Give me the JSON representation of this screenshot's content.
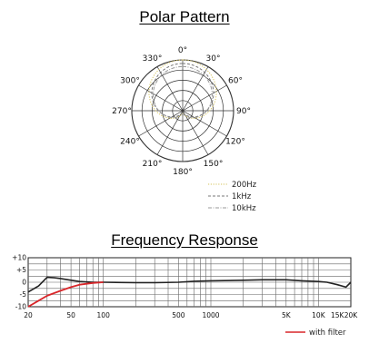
{
  "chart_data": [
    {
      "type": "polar",
      "title": "Polar Pattern",
      "angle_labels": [
        "0°",
        "30°",
        "60°",
        "90°",
        "120°",
        "150°",
        "180°",
        "210°",
        "240°",
        "270°",
        "300°",
        "330°"
      ],
      "series": [
        {
          "name": "200Hz",
          "color": "#d4c25a",
          "dash": "dotted",
          "pattern": "cardioid",
          "rear_level": 0.06
        },
        {
          "name": "1kHz",
          "color": "#777777",
          "dash": "dashed",
          "pattern": "cardioid",
          "rear_level": 0.02
        },
        {
          "name": "10kHz",
          "color": "#999999",
          "dash": "dash-dot",
          "pattern": "cardioid",
          "rear_level": 0.08
        }
      ],
      "grid": true,
      "legend": "bottom-right"
    },
    {
      "type": "line",
      "title": "Frequency Response",
      "x_scale": "log",
      "xlim": [
        20,
        20000
      ],
      "ylim": [
        -10,
        10
      ],
      "x_tick_labels": [
        {
          "v": 20,
          "t": "20"
        },
        {
          "v": 50,
          "t": "50"
        },
        {
          "v": 100,
          "t": "100"
        },
        {
          "v": 500,
          "t": "500"
        },
        {
          "v": 1000,
          "t": "1000"
        },
        {
          "v": 5000,
          "t": "5K"
        },
        {
          "v": 10000,
          "t": "10K"
        },
        {
          "v": 15000,
          "t": "15K"
        },
        {
          "v": 20000,
          "t": "20K"
        }
      ],
      "y_tick_labels": [
        {
          "v": 10,
          "t": "+10"
        },
        {
          "v": 5,
          "t": "+5"
        },
        {
          "v": 0,
          "t": "0"
        },
        {
          "v": -5,
          "t": "-5"
        },
        {
          "v": -10,
          "t": "-10"
        }
      ],
      "series": [
        {
          "name": "",
          "color": "#222222",
          "x": [
            20,
            25,
            30,
            35,
            40,
            50,
            60,
            80,
            100,
            200,
            300,
            500,
            700,
            1000,
            2000,
            3000,
            5000,
            7000,
            10000,
            12000,
            15000,
            18000,
            20000
          ],
          "y": [
            -4,
            -1.5,
            2,
            1.8,
            1.5,
            0.8,
            0.3,
            0,
            0,
            -0.2,
            -0.2,
            0,
            0.4,
            0.6,
            0.8,
            1,
            1,
            0.6,
            0.3,
            0,
            -1,
            -2,
            0
          ]
        },
        {
          "name": "with filter",
          "color": "#d9262a",
          "x": [
            20,
            25,
            30,
            40,
            50,
            60,
            80,
            100
          ],
          "y": [
            -10,
            -7.5,
            -5.5,
            -3.5,
            -2,
            -1,
            -0.3,
            0
          ]
        }
      ],
      "grid": true,
      "legend": "bottom-right"
    }
  ]
}
